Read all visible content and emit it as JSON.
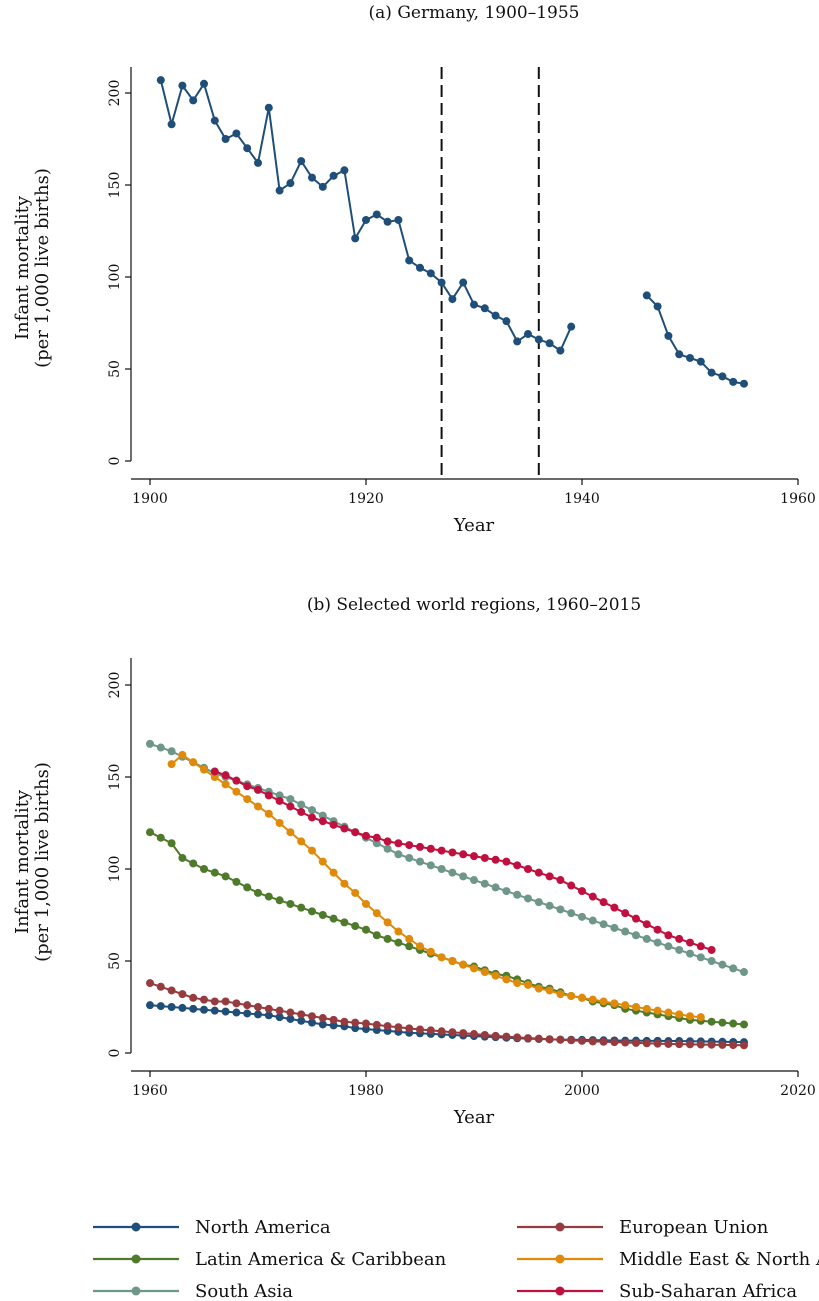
{
  "chart_data": [
    {
      "type": "line",
      "title": "(a) Germany, 1900–1955",
      "xlabel": "Year",
      "ylabel": [
        "Infant mortality",
        "(per 1,000 live births)"
      ],
      "xlim": [
        1900,
        1960
      ],
      "ylim": [
        0,
        200
      ],
      "xticks": [
        "1900",
        "1920",
        "1940",
        "1960"
      ],
      "yticks": [
        "0",
        "50",
        "100",
        "150",
        "200"
      ],
      "grid": false,
      "vlines": [
        1927,
        1936
      ],
      "series": [
        {
          "color": "#1f4e79",
          "x": [
            1901,
            1902,
            1903,
            1904,
            1905,
            1906,
            1907,
            1908,
            1909,
            1910,
            1911,
            1912,
            1913,
            1914,
            1915,
            1916,
            1917,
            1918,
            1919,
            1920,
            1921,
            1922,
            1923,
            1924,
            1925,
            1926,
            1927,
            1928,
            1929,
            1930,
            1931,
            1932,
            1933,
            1934,
            1935,
            1936,
            1937,
            1938,
            1939,
            null,
            1946,
            1947,
            1948,
            1949,
            1950,
            1951,
            1952,
            1953,
            1954,
            1955
          ],
          "values": [
            207,
            183,
            204,
            196,
            205,
            185,
            175,
            178,
            170,
            162,
            192,
            147,
            151,
            163,
            154,
            149,
            155,
            158,
            121,
            131,
            134,
            130,
            131,
            109,
            105,
            102,
            97,
            88,
            97,
            85,
            83,
            79,
            76,
            65,
            69,
            66,
            64,
            60,
            73,
            null,
            90,
            84,
            68,
            58,
            56,
            54,
            48,
            46,
            43,
            42
          ]
        }
      ]
    },
    {
      "type": "line",
      "title": "(b) Selected world regions, 1960–2015",
      "xlabel": "Year",
      "ylabel": [
        "Infant mortality",
        "(per 1,000 live births)"
      ],
      "xlim": [
        1960,
        2020
      ],
      "ylim": [
        0,
        200
      ],
      "xticks": [
        "1960",
        "1980",
        "2000",
        "2020"
      ],
      "yticks": [
        "0",
        "50",
        "100",
        "150",
        "200"
      ],
      "grid": false,
      "legend": "bottom",
      "series": [
        {
          "name": "North America",
          "color": "#1f4e79",
          "x_start": 1960,
          "values": [
            26,
            25.5,
            25,
            24.5,
            24,
            23.5,
            23,
            22.5,
            22,
            21.5,
            21,
            20.5,
            19.5,
            18.5,
            17.5,
            16.5,
            15.5,
            15,
            14.5,
            13.5,
            13,
            12.5,
            12,
            11.5,
            11,
            10.7,
            10.4,
            10.1,
            9.8,
            9.5,
            9.2,
            8.9,
            8.6,
            8.3,
            8,
            7.8,
            7.6,
            7.4,
            7.3,
            7.2,
            7.1,
            7,
            6.9,
            6.8,
            6.7,
            6.7,
            6.6,
            6.6,
            6.5,
            6.5,
            6.4,
            6.3,
            6.2,
            6.1,
            6,
            5.9
          ]
        },
        {
          "name": "Latin America & Caribbean",
          "color": "#4e7a2b",
          "x_start": 1960,
          "values": [
            120,
            117,
            114,
            106,
            103,
            100,
            98,
            96,
            93,
            90,
            87,
            85,
            83,
            81,
            79,
            77,
            75,
            73,
            71,
            69,
            67,
            64,
            62,
            60,
            58,
            56,
            54,
            52,
            50,
            48,
            47,
            45,
            43,
            42,
            40,
            38,
            36,
            35,
            33,
            31,
            30,
            28,
            27,
            26,
            24,
            23,
            22,
            21,
            20,
            19,
            18,
            17.5,
            17,
            16.5,
            16,
            15.5
          ]
        },
        {
          "name": "South Asia",
          "color": "#6f968a",
          "x_start": 1960,
          "values": [
            168,
            166,
            164,
            161,
            158,
            155,
            152,
            150,
            148,
            146,
            144,
            142,
            140,
            138,
            135,
            132,
            129,
            126,
            123,
            120,
            117,
            114,
            111,
            108,
            106,
            104,
            102,
            100,
            98,
            96,
            94,
            92,
            90,
            88,
            86,
            84,
            82,
            80,
            78,
            76,
            74,
            72,
            70,
            68,
            66,
            64,
            62,
            60,
            58,
            56,
            54,
            52,
            50,
            48,
            46,
            44
          ]
        },
        {
          "name": "European Union",
          "color": "#963b3e",
          "x_start": 1960,
          "values": [
            38,
            36,
            34,
            32,
            30,
            29,
            28,
            28,
            27,
            26,
            25,
            24,
            23,
            22,
            21,
            20,
            19,
            18,
            17,
            16.5,
            16,
            15.3,
            14.6,
            14,
            13.4,
            12.8,
            12.3,
            11.8,
            11.3,
            10.8,
            10.3,
            9.8,
            9.3,
            8.9,
            8.5,
            8.1,
            7.8,
            7.5,
            7.2,
            6.9,
            6.6,
            6.3,
            6.1,
            5.9,
            5.7,
            5.5,
            5.3,
            5.1,
            4.9,
            4.8,
            4.7,
            4.6,
            4.5,
            4.4,
            4.3,
            4.2
          ]
        },
        {
          "name": "Middle East & North Africa",
          "color": "#e08a0b",
          "x_start": 1962,
          "values": [
            157,
            162,
            158,
            154,
            150,
            146,
            142,
            138,
            134,
            130,
            125,
            120,
            115,
            110,
            104,
            98,
            92,
            87,
            81,
            76,
            71,
            66,
            62,
            58,
            55,
            52,
            50,
            48,
            46,
            44,
            42,
            40,
            38,
            37,
            35,
            34,
            32,
            31,
            30,
            29,
            28,
            27,
            26,
            25,
            24,
            23,
            22,
            21,
            20,
            19.5
          ]
        },
        {
          "name": "Sub-Saharan Africa",
          "color": "#c0103f",
          "x_start": 1966,
          "values": [
            153,
            151,
            148,
            145,
            143,
            140,
            137,
            134,
            131,
            128,
            126,
            124,
            122,
            120,
            118,
            117,
            115,
            114,
            113,
            112,
            111,
            110,
            109,
            108,
            107,
            106,
            105,
            104,
            102,
            100,
            98,
            96,
            94,
            91,
            88,
            85,
            82,
            79,
            76,
            73,
            70,
            67,
            64,
            62,
            60,
            58,
            56
          ]
        }
      ],
      "legend_labels": [
        "North America",
        "European Union",
        "Latin America & Caribbean",
        "Middle East & North Africa",
        "South Asia",
        "Sub-Saharan Africa"
      ]
    }
  ]
}
